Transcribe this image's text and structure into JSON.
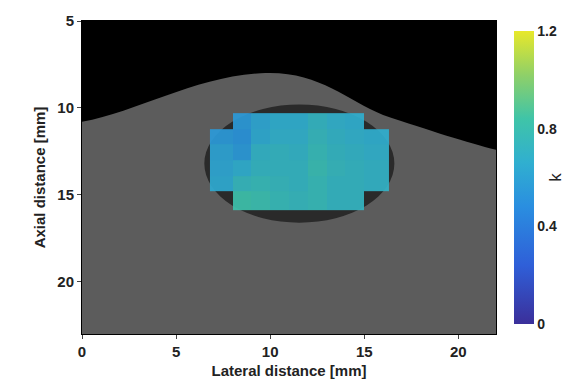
{
  "chart_data": {
    "type": "heatmap",
    "x_label": "Lateral distance [mm]",
    "y_label": "Axial distance [mm]",
    "xlim": [
      0,
      22
    ],
    "xticks": [
      0,
      5,
      10,
      15,
      20
    ],
    "ylim": [
      23,
      5
    ],
    "yticks": [
      5,
      10,
      15,
      20
    ],
    "grid": false,
    "x_edges": [
      6.8,
      8,
      9,
      10,
      11,
      12,
      13,
      14,
      15,
      16.3
    ],
    "y_edges": [
      10.3,
      11.2,
      12.1,
      13,
      13.9,
      14.8,
      15.9
    ],
    "cells": [
      [
        null,
        0.55,
        0.62,
        0.66,
        0.66,
        0.72,
        0.68,
        0.66,
        null
      ],
      [
        0.55,
        0.52,
        0.64,
        0.68,
        0.68,
        0.74,
        0.7,
        0.68,
        0.66
      ],
      [
        0.6,
        0.55,
        0.7,
        0.72,
        0.7,
        0.76,
        0.72,
        0.7,
        0.68
      ],
      [
        0.62,
        0.66,
        0.72,
        0.72,
        0.72,
        0.78,
        0.74,
        0.72,
        0.7
      ],
      [
        0.64,
        0.74,
        0.76,
        0.74,
        0.72,
        0.76,
        0.72,
        0.72,
        0.7
      ],
      [
        null,
        0.82,
        0.8,
        0.76,
        0.74,
        0.76,
        0.72,
        0.72,
        null
      ]
    ],
    "color_label": "k",
    "color_range": [
      0,
      1.2
    ],
    "color_ticks": [
      0,
      0.4,
      0.8,
      1.2
    ]
  }
}
